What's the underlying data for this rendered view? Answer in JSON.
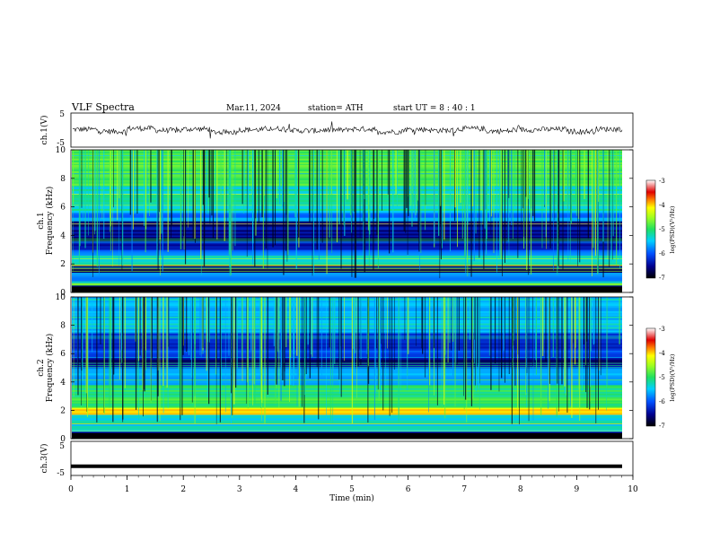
{
  "header": {
    "title": "VLF  Spectra",
    "date": "Mar.11, 2024",
    "station": "station= ATH",
    "start": "start  UT  =   8  : 40 : 1"
  },
  "chart_data": [
    {
      "type": "line",
      "title": "",
      "ylabel": "ch.1(V)",
      "ylim": [
        -5,
        5
      ],
      "yticks": [
        "5",
        "-5"
      ],
      "series": [
        {
          "values": [
            0.2,
            -0.4,
            0.5,
            -0.1,
            0.3,
            -0.6,
            0.1,
            0.4,
            -0.2,
            0.0,
            0.3,
            -0.5,
            0.2,
            -0.1,
            0.4,
            -0.3,
            0.1,
            0.2,
            -0.4,
            0.3
          ]
        }
      ]
    },
    {
      "type": "heatmap",
      "title": "",
      "ylabel": "ch.1\nFrequency  (kHz)",
      "ylim": [
        0,
        10
      ],
      "yticks": [
        "0",
        "2",
        "4",
        "6",
        "8",
        "10"
      ],
      "colorbar": {
        "label": "log(PSD)(V²/Hz)",
        "range": [
          -7,
          -3
        ],
        "ticks": [
          "-3",
          "-4",
          "-5",
          "-6",
          "-7"
        ]
      },
      "bands_khz": [
        {
          "lo": 0.0,
          "hi": 0.5,
          "level": 0.05
        },
        {
          "lo": 0.5,
          "hi": 0.8,
          "level": 0.5
        },
        {
          "lo": 0.8,
          "hi": 1.4,
          "level": 0.3
        },
        {
          "lo": 1.4,
          "hi": 1.9,
          "level": 0.12
        },
        {
          "lo": 1.9,
          "hi": 2.6,
          "level": 0.45
        },
        {
          "lo": 2.6,
          "hi": 3.0,
          "level": 0.3
        },
        {
          "lo": 3.0,
          "hi": 5.0,
          "level": 0.12
        },
        {
          "lo": 5.0,
          "hi": 5.6,
          "level": 0.3
        },
        {
          "lo": 5.6,
          "hi": 7.5,
          "level": 0.42
        },
        {
          "lo": 7.5,
          "hi": 10.0,
          "level": 0.55
        }
      ]
    },
    {
      "type": "heatmap",
      "title": "",
      "ylabel": "ch.2\nFrequency  (kHz)",
      "ylim": [
        0,
        10
      ],
      "yticks": [
        "0",
        "2",
        "4",
        "6",
        "8",
        "10"
      ],
      "colorbar": {
        "label": "log(PSD)(V²/Hz)",
        "range": [
          -7,
          -3
        ],
        "ticks": [
          "-3",
          "-4",
          "-5",
          "-6",
          "-7"
        ]
      },
      "bands_khz": [
        {
          "lo": 0.0,
          "hi": 0.5,
          "level": 0.1
        },
        {
          "lo": 0.5,
          "hi": 1.7,
          "level": 0.4
        },
        {
          "lo": 1.7,
          "hi": 2.2,
          "level": 0.72
        },
        {
          "lo": 2.2,
          "hi": 3.8,
          "level": 0.5
        },
        {
          "lo": 3.8,
          "hi": 5.0,
          "level": 0.32
        },
        {
          "lo": 5.0,
          "hi": 5.6,
          "level": 0.12
        },
        {
          "lo": 5.6,
          "hi": 7.5,
          "level": 0.2
        },
        {
          "lo": 7.5,
          "hi": 10.0,
          "level": 0.38
        }
      ]
    },
    {
      "type": "line",
      "title": "",
      "ylabel": "ch.3(V)",
      "xlabel": "Time  (min)",
      "ylim": [
        -5,
        5
      ],
      "yticks": [
        "5",
        "-5"
      ],
      "xlim": [
        0,
        10
      ],
      "xticks": [
        "0",
        "1",
        "2",
        "3",
        "4",
        "5",
        "6",
        "7",
        "8",
        "9",
        "10"
      ],
      "series": [
        {
          "values": [
            -2.3,
            -2.3,
            -2.3,
            -2.3,
            -2.3,
            -2.3,
            -2.3,
            -2.3,
            -2.3,
            -2.3
          ]
        }
      ]
    }
  ]
}
